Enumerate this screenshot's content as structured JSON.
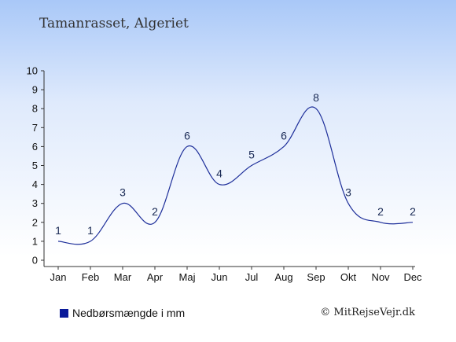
{
  "title": "Tamanrasset, Algeriet",
  "legend_label": "Nedbørsmængde i mm",
  "credit": "© MitRejseVejr.dk",
  "colors": {
    "line": "#1e2f9a",
    "legend_swatch": "#0a1a9a"
  },
  "chart_data": {
    "type": "line",
    "categories": [
      "Jan",
      "Feb",
      "Mar",
      "Apr",
      "Maj",
      "Jun",
      "Jul",
      "Aug",
      "Sep",
      "Okt",
      "Nov",
      "Dec"
    ],
    "series": [
      {
        "name": "Nedbørsmængde i mm",
        "values": [
          1,
          1,
          3,
          2,
          6,
          4,
          5,
          6,
          8,
          3,
          2,
          2
        ]
      }
    ],
    "yticks": [
      0,
      1,
      2,
      3,
      4,
      5,
      6,
      7,
      8,
      9,
      10
    ],
    "ylim": [
      0,
      10
    ],
    "xlabel": "",
    "ylabel": "",
    "grid": false,
    "legend_position": "bottom-left"
  }
}
